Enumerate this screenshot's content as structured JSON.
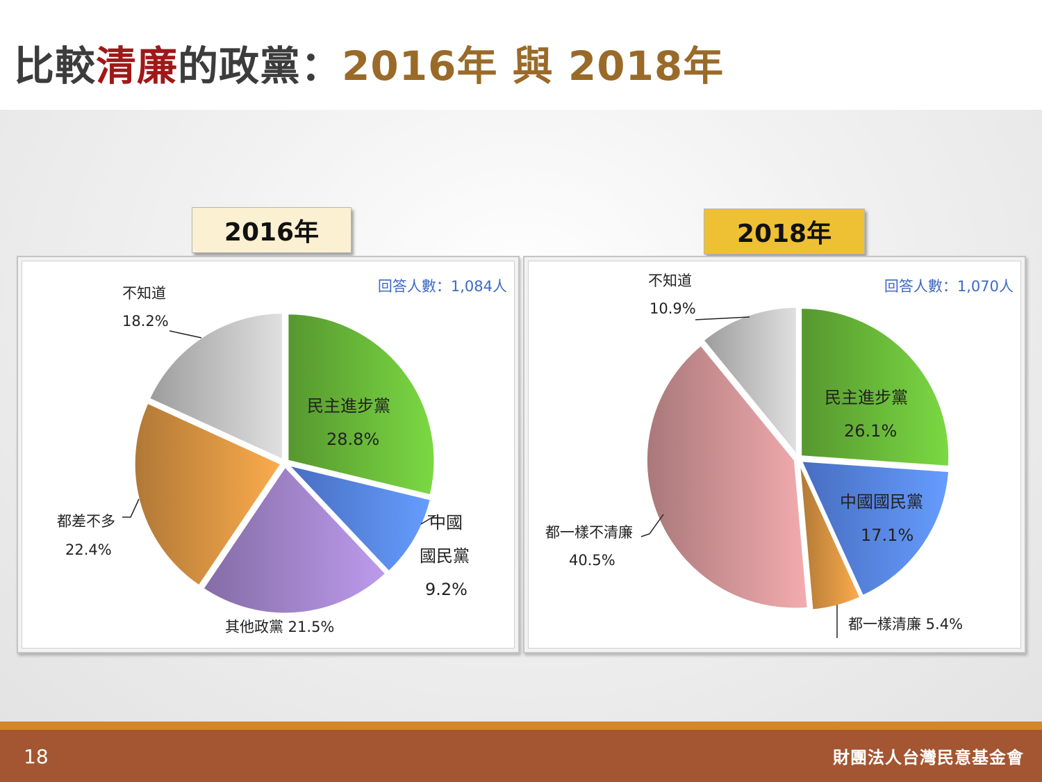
{
  "title": {
    "part1": "比較",
    "highlight": "清廉",
    "part2": "的政黨：",
    "years": "2016年 與 2018年"
  },
  "chart_data": [
    {
      "type": "pie",
      "title": "2016年",
      "respondents": "回答人數：1,084人",
      "slices": [
        {
          "name": "民主進步黨",
          "value": 28.8,
          "label": "28.8%",
          "color": "#6ec23c"
        },
        {
          "name": "中國國民黨",
          "value": 9.2,
          "label": "9.2%",
          "color": "#5b8cf5"
        },
        {
          "name": "其他政黨",
          "value": 21.5,
          "label": "其他政黨 21.5%",
          "color": "#a98ad4"
        },
        {
          "name": "都差不多",
          "value": 22.4,
          "label": "22.4%",
          "color": "#e19a45"
        },
        {
          "name": "不知道",
          "value": 18.2,
          "label": "18.2%",
          "color": "#c8c8c8"
        }
      ],
      "text": {
        "dpp_name": "民主進步黨",
        "dpp_pct": "28.8%",
        "kmt_line1": "中國",
        "kmt_line2": "國民黨",
        "kmt_pct": "9.2%",
        "other": "其他政黨 21.5%",
        "same_name": "都差不多",
        "same_pct": "22.4%",
        "dk_name": "不知道",
        "dk_pct": "18.2%"
      }
    },
    {
      "type": "pie",
      "title": "2018年",
      "respondents": "回答人數：1,070人",
      "slices": [
        {
          "name": "民主進步黨",
          "value": 26.1,
          "label": "26.1%",
          "color": "#6ec23c"
        },
        {
          "name": "中國國民黨",
          "value": 17.1,
          "label": "17.1%",
          "color": "#5b8cf5"
        },
        {
          "name": "都一樣清廉",
          "value": 5.4,
          "label": "都一樣清廉 5.4%",
          "color": "#e19a45"
        },
        {
          "name": "都一樣不清廉",
          "value": 40.5,
          "label": "40.5%",
          "color": "#d99a9c"
        },
        {
          "name": "不知道",
          "value": 10.9,
          "label": "10.9%",
          "color": "#c8c8c8"
        }
      ],
      "text": {
        "dpp_name": "民主進步黨",
        "dpp_pct": "26.1%",
        "kmt_name": "中國國民黨",
        "kmt_pct": "17.1%",
        "clean": "都一樣清廉 5.4%",
        "unclean_name": "都一樣不清廉",
        "unclean_pct": "40.5%",
        "dk_name": "不知道",
        "dk_pct": "10.9%"
      }
    }
  ],
  "footer": {
    "page": "18",
    "org": "財團法人台灣民意基金會"
  }
}
